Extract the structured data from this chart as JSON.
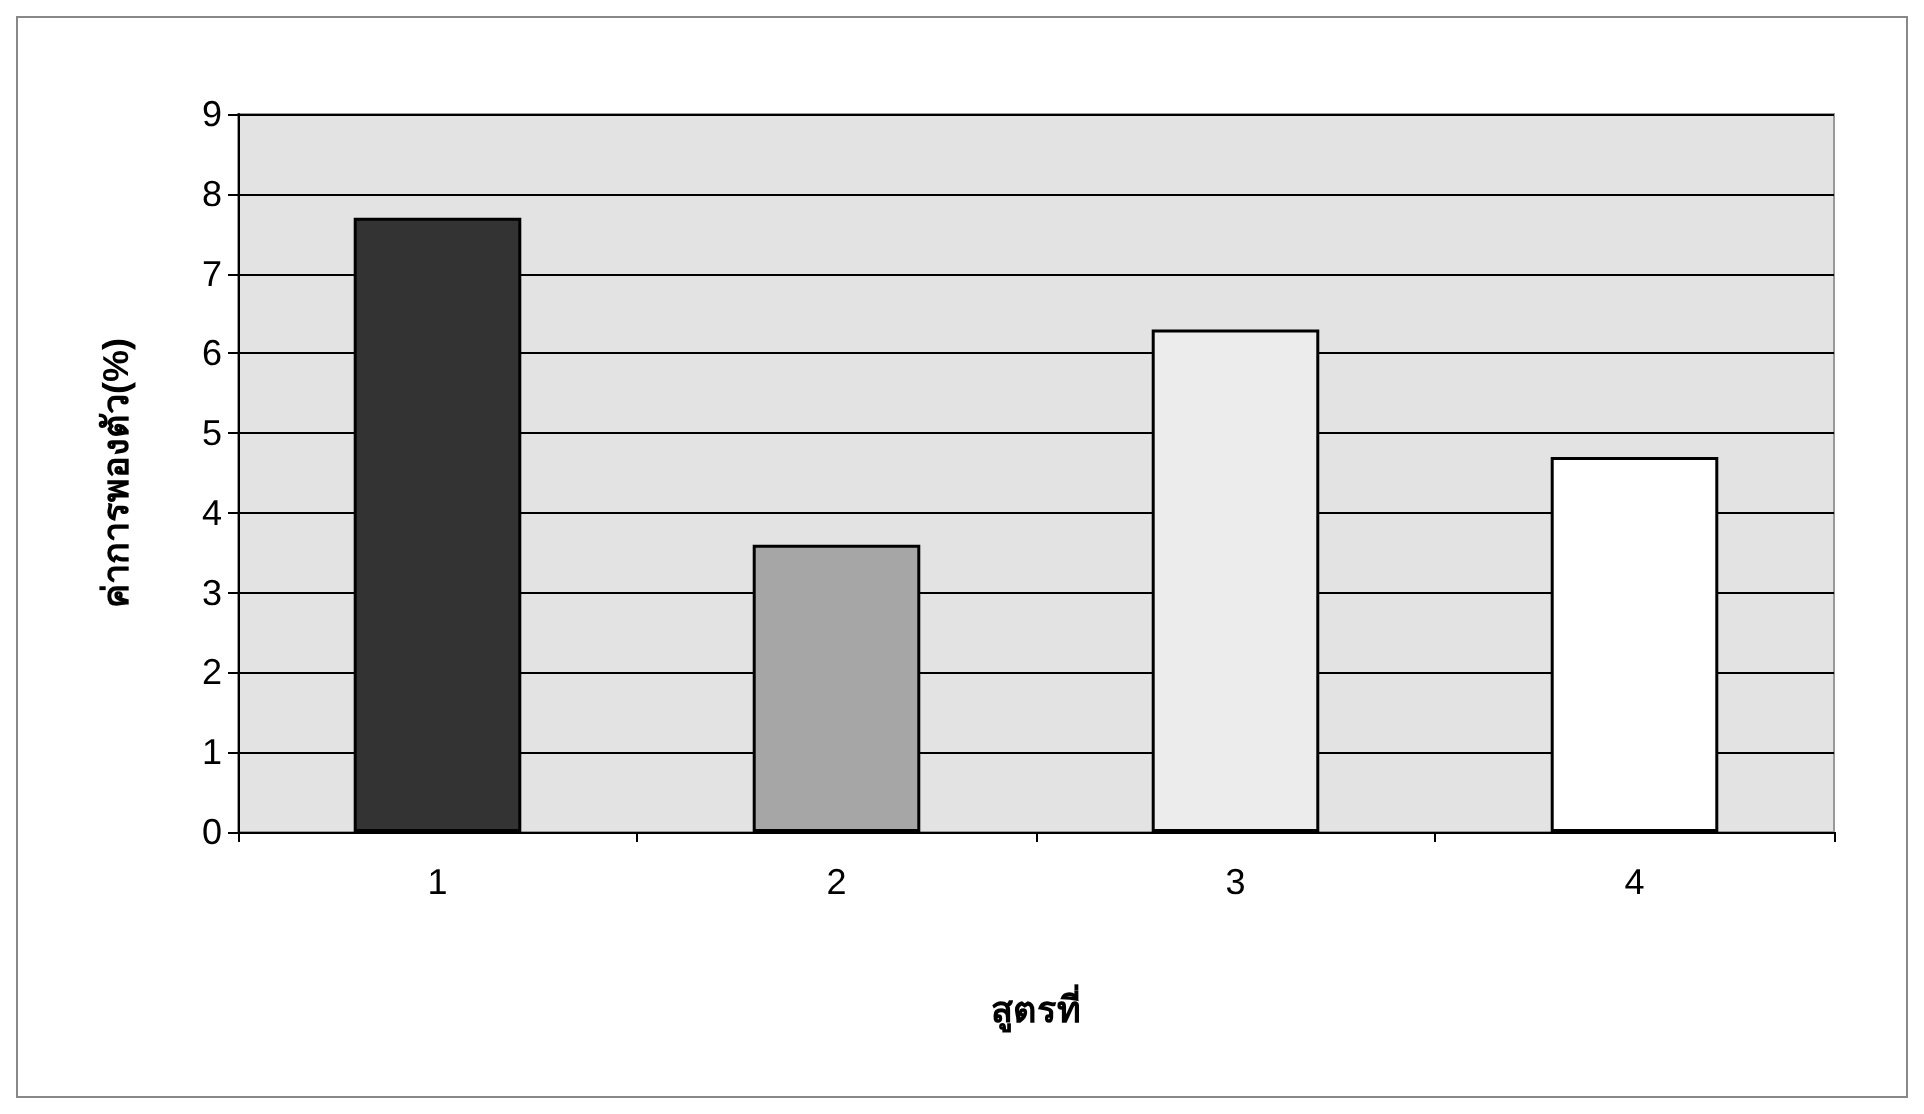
{
  "chart_data": {
    "type": "bar",
    "xlabel": "สูตรที่",
    "ylabel": "ค่าการพองตัว(%)",
    "categories": [
      "1",
      "2",
      "3",
      "4"
    ],
    "values": [
      7.7,
      3.6,
      6.3,
      4.7
    ],
    "colors": [
      "#333333",
      "#a6a6a6",
      "#ececec",
      "#ffffff"
    ],
    "ylim": [
      0,
      9
    ],
    "yticks": [
      0,
      1,
      2,
      3,
      4,
      5,
      6,
      7,
      8,
      9
    ],
    "grid": "y"
  }
}
